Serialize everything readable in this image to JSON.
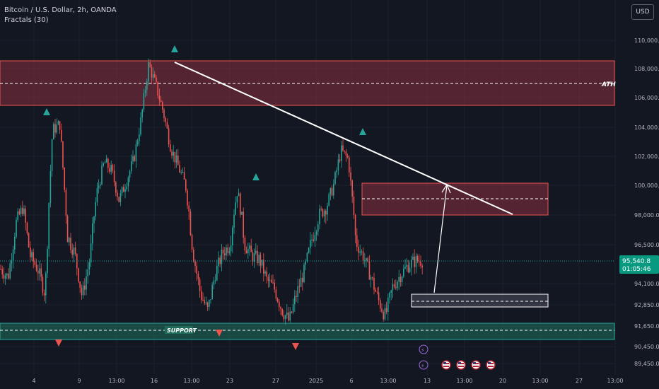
{
  "header": {
    "symbol_line": "Bitcoin / U.S. Dollar, 2h, OANDA",
    "indicator_line": "Fractals (30)",
    "currency_button": "USD"
  },
  "colors": {
    "background": "#131722",
    "bull": "#26a69a",
    "bear": "#ef5350",
    "resistance_zone": "#8b2f3f",
    "support_zone": "#1e6b5a",
    "price_badge": "#089981"
  },
  "price_scale": {
    "ticks": [
      "110,000.0",
      "108,000.0",
      "106,000.0",
      "104,000.0",
      "102,000.0",
      "100,000.0",
      "98,000.0",
      "96,500.0",
      "94,100.0",
      "92,850.0",
      "91,650.0",
      "90,450.0",
      "89,450.0"
    ],
    "current_price": "95,540.8",
    "countdown": "01:05:46"
  },
  "time_scale": {
    "ticks": [
      "4",
      "9",
      "13:00",
      "16",
      "13:00",
      "23",
      "27",
      "2025",
      "6",
      "13:00",
      "13",
      "13:00",
      "20",
      "13:00",
      "27",
      "13:00"
    ]
  },
  "annotations": {
    "ath_label": "ATH",
    "support_label": "SUPPORT"
  },
  "chart_data": {
    "type": "candlestick",
    "symbol": "BTCUSD",
    "interval": "2h",
    "y_axis_ticks": [
      110000,
      108000,
      106000,
      104000,
      102000,
      100000,
      98000,
      96500,
      94100,
      92850,
      91650,
      90450,
      89450
    ],
    "price_path_approx": [
      95000,
      94500,
      97500,
      98500,
      95800,
      95000,
      93500,
      103800,
      104200,
      97000,
      96000,
      93300,
      95500,
      99500,
      101600,
      101000,
      99000,
      100300,
      101800,
      104600,
      108300,
      106800,
      105000,
      102600,
      101300,
      100000,
      96000,
      93500,
      92500,
      94700,
      96000,
      96500,
      99700,
      96500,
      95800,
      95600,
      94300,
      93800,
      92600,
      91900,
      93500,
      94800,
      96700,
      98000,
      98500,
      100000,
      102400,
      101800,
      96700,
      95800,
      94600,
      93200,
      92200,
      93900,
      94600,
      95200,
      95500,
      95540.8
    ],
    "current_price": 95540.8,
    "resistance_zone": [
      105600,
      108800
    ],
    "ath_level": 107100,
    "target_zone": [
      98400,
      100400
    ],
    "entry_zone": [
      92400,
      93400
    ],
    "support_zone": [
      91000,
      92000
    ],
    "fractal_up_markers": 5,
    "fractal_down_markers": 3
  },
  "events": {
    "flash_icons": [
      "⚡",
      "⚡"
    ],
    "flag_icons": [
      "US",
      "US",
      "US",
      "US"
    ]
  }
}
